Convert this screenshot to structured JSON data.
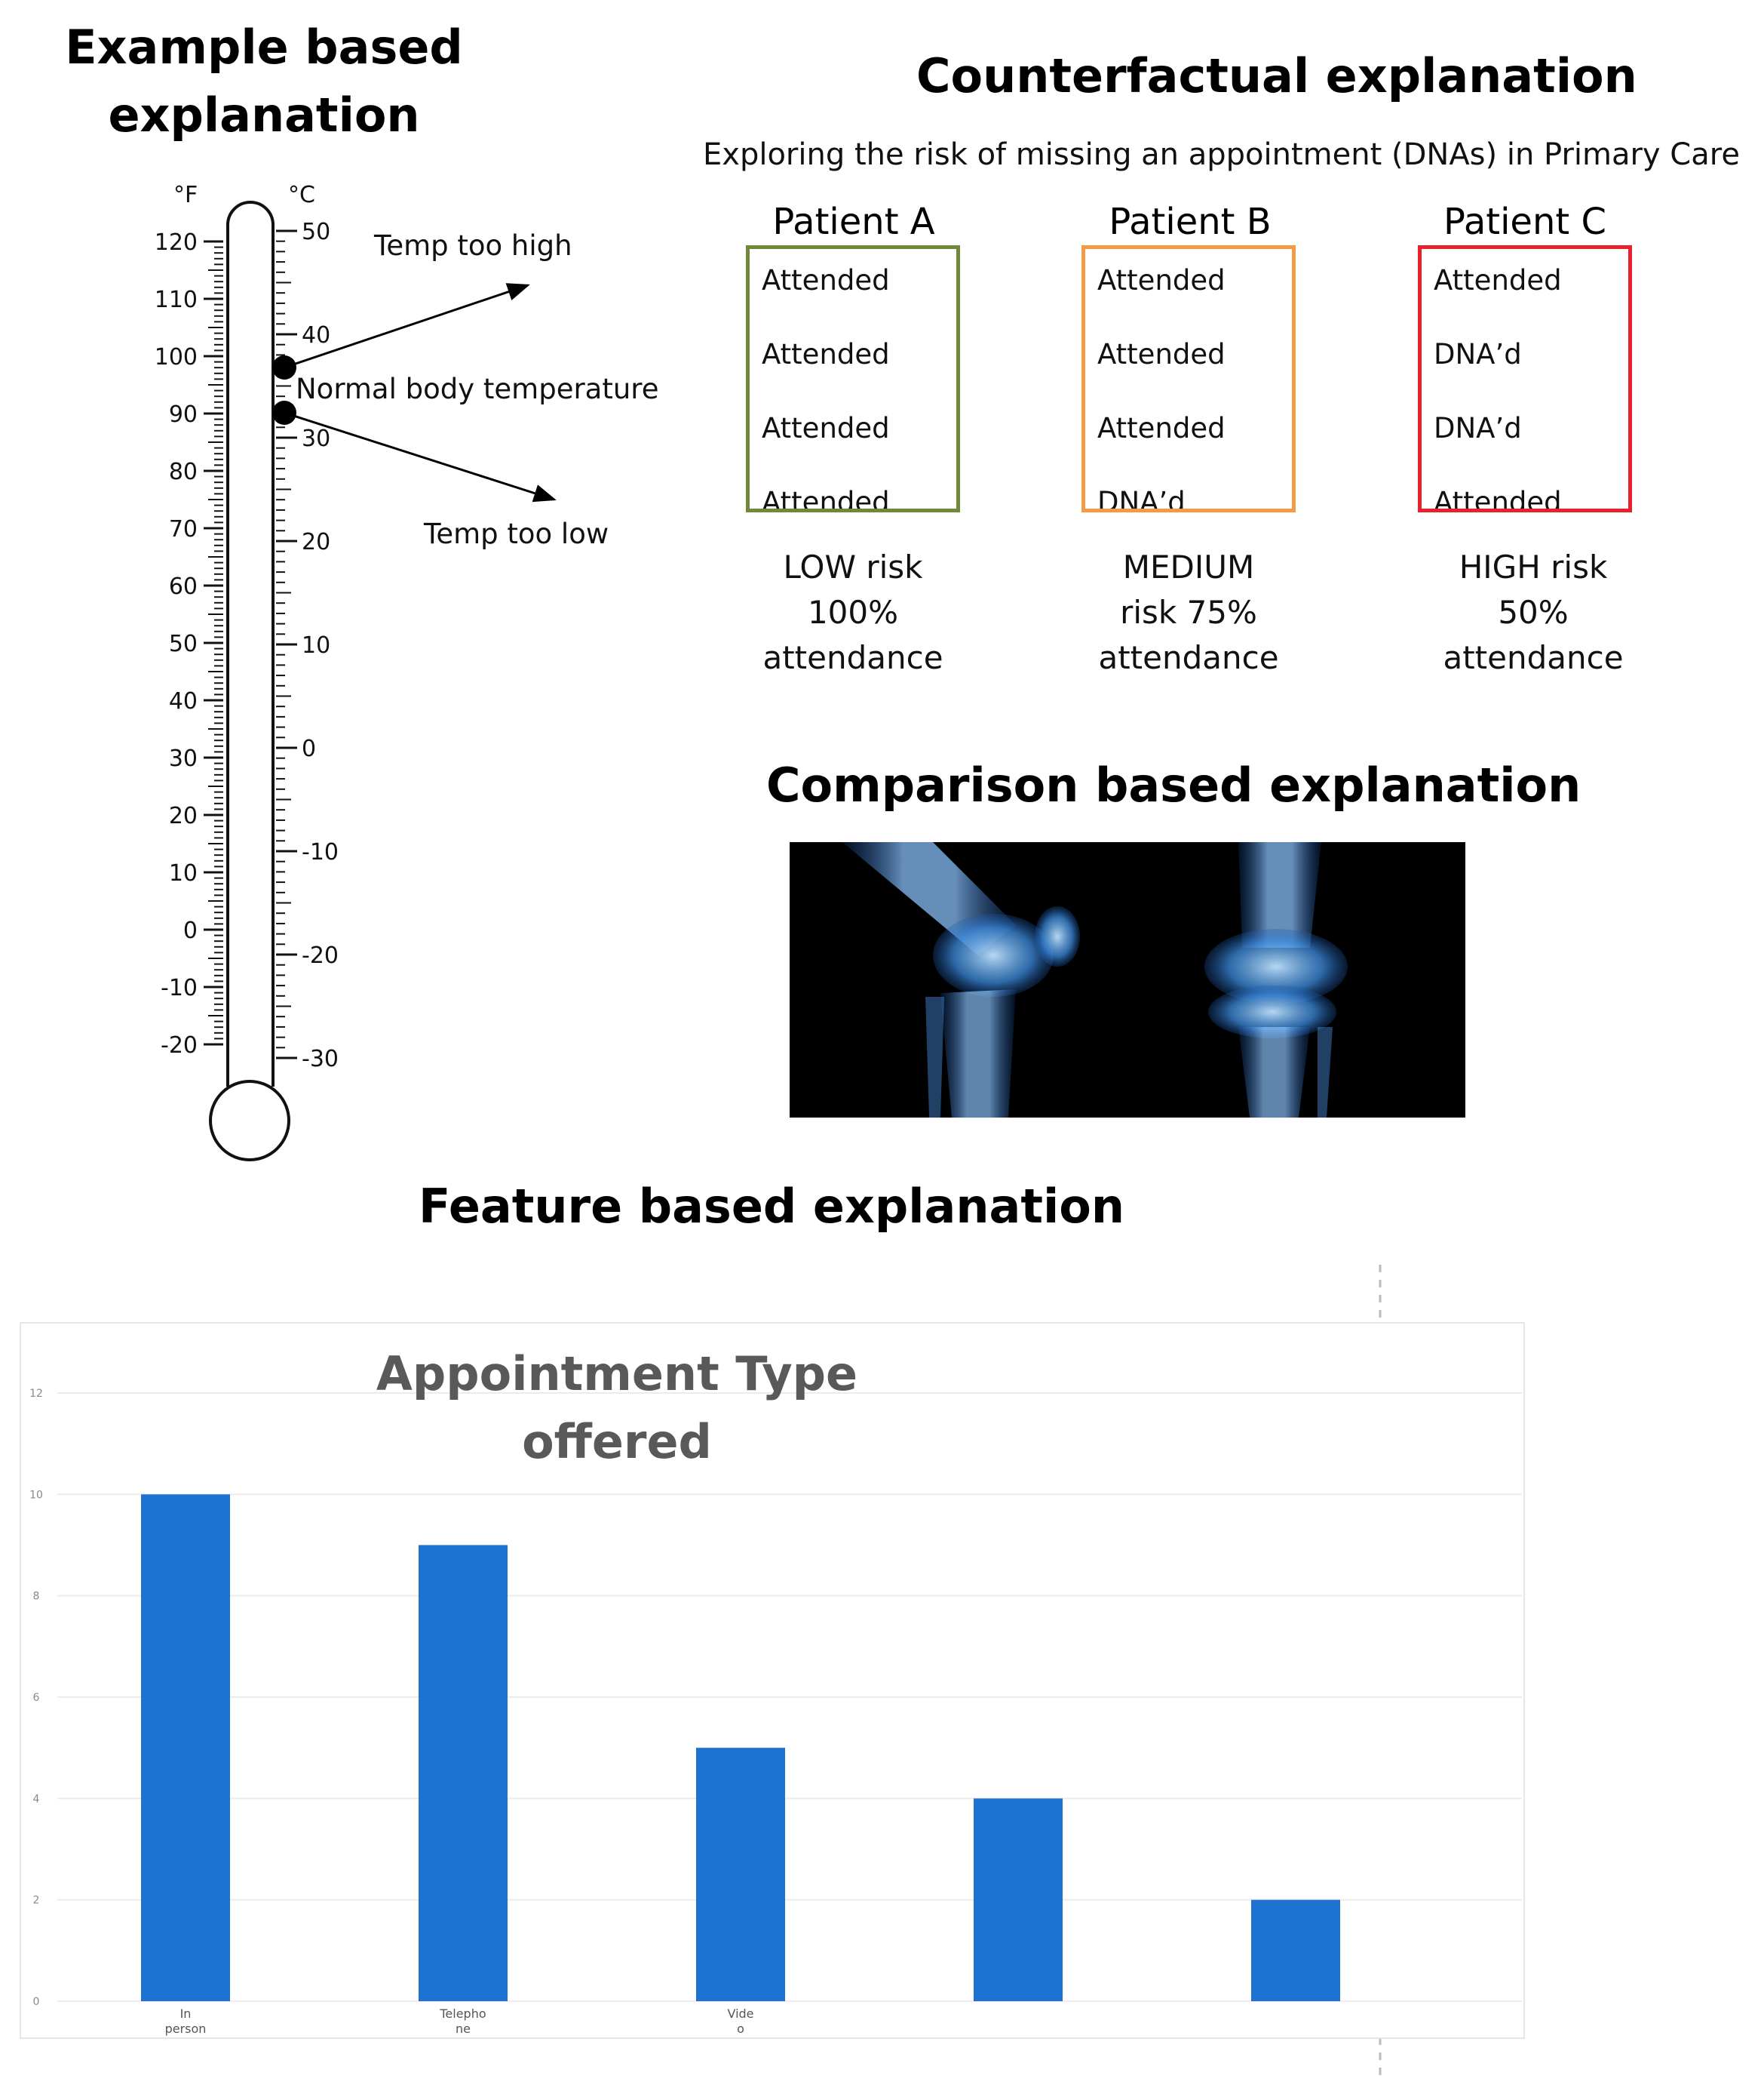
{
  "sections": {
    "example_title_line1": "Example based",
    "example_title_line2": "explanation",
    "counterfactual_title": "Counterfactual explanation",
    "counterfactual_subtitle": "Exploring the risk of missing an appointment (DNAs) in Primary Care",
    "comparison_title": "Comparison based explanation",
    "feature_title": "Feature based explanation"
  },
  "thermometer": {
    "unit_f": "°F",
    "unit_c": "°C",
    "f_ticks": [
      "120",
      "110",
      "100",
      "90",
      "80",
      "70",
      "60",
      "50",
      "40",
      "30",
      "20",
      "10",
      "0",
      "-10",
      "-20"
    ],
    "c_ticks": [
      "50",
      "40",
      "30",
      "20",
      "10",
      "0",
      "-10",
      "-20",
      "-30"
    ],
    "annotations": {
      "high": "Temp too high",
      "normal": "Normal body temperature",
      "low": "Temp too low"
    }
  },
  "patients": [
    {
      "name": "Patient A",
      "color": "#70883a",
      "rows": [
        "Attended",
        "Attended",
        "Attended",
        "Attended"
      ],
      "risk": [
        "LOW risk",
        "100%",
        "attendance"
      ]
    },
    {
      "name": "Patient B",
      "color": "#f39a44",
      "rows": [
        "Attended",
        "Attended",
        "Attended",
        "DNA’d"
      ],
      "risk": [
        "MEDIUM",
        "risk 75%",
        "attendance"
      ]
    },
    {
      "name": "Patient C",
      "color": "#e8212e",
      "rows": [
        "Attended",
        "DNA’d",
        "DNA’d",
        "Attended"
      ],
      "risk": [
        "HIGH risk",
        "50%",
        "attendance"
      ]
    }
  ],
  "chart_data": {
    "type": "bar",
    "title": "Appointment Type offered",
    "title_line1": "Appointment Type",
    "title_line2": "offered",
    "categories": [
      "In person",
      "Telephone",
      "Video",
      "",
      ""
    ],
    "category_label_lines": [
      [
        "In",
        "person"
      ],
      [
        "Telepho",
        "ne"
      ],
      [
        "Vide",
        "o"
      ],
      [],
      []
    ],
    "values": [
      10,
      9,
      5,
      4,
      2
    ],
    "yticks": [
      "0",
      "2",
      "4",
      "6",
      "8",
      "10",
      "12"
    ],
    "ylim": [
      0,
      12
    ],
    "bar_color": "#1e73d2",
    "grid": true
  }
}
